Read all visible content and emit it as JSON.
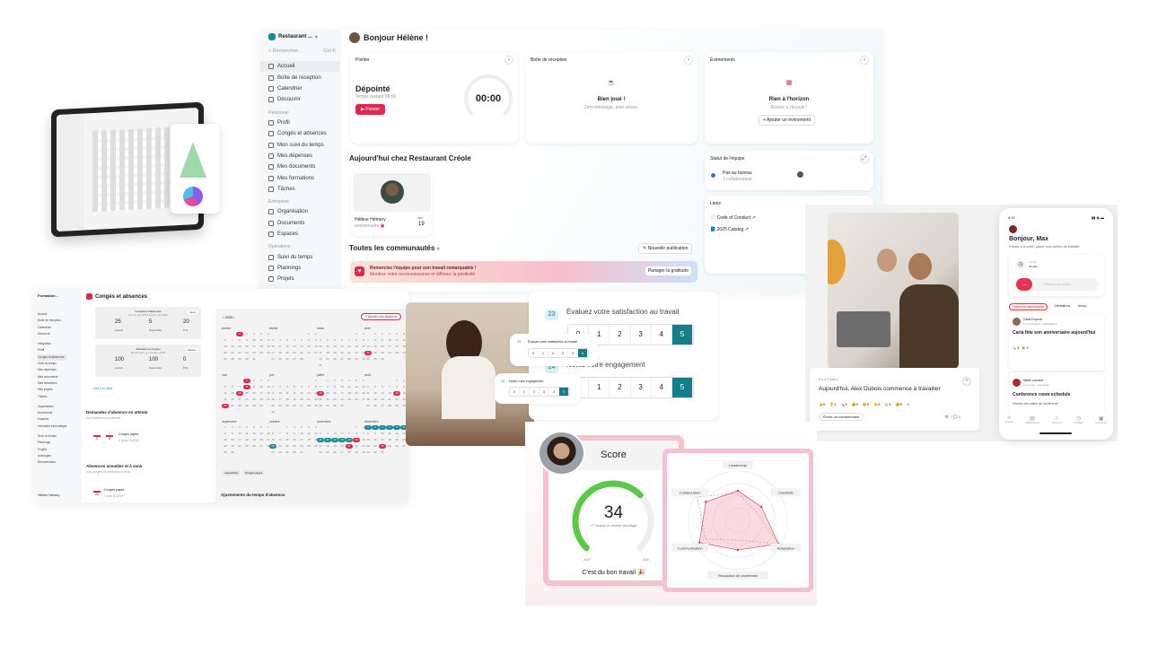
{
  "dashboard": {
    "org": "Restaurant ...",
    "search_placeholder": "Rechercher...",
    "search_shortcut": "Ctrl K",
    "nav_main": [
      "Accueil",
      "Boîte de réception",
      "Calendrier",
      "Découvrir"
    ],
    "section_personnel": "Personnel",
    "nav_personnel": [
      "Profil",
      "Congés et absences",
      "Mon suivi du temps",
      "Mes dépenses",
      "Mes documents",
      "Mes formations",
      "Tâches"
    ],
    "section_entreprise": "Entreprise",
    "nav_entreprise": [
      "Organisation",
      "Documents",
      "Espaces"
    ],
    "section_operations": "Opérations",
    "nav_operations": [
      "Suivi du temps",
      "Plannings",
      "Projets"
    ],
    "greeting": "Bonjour Hélène !",
    "pointer": {
      "title": "Pointer",
      "status": "Dépointé",
      "remaining": "Temps restant 08:00",
      "button": "Pointer",
      "timer": "00:00"
    },
    "inbox": {
      "title": "Boîte de réception",
      "heading": "Bien joué !",
      "sub": "Zéro message, zéro stress."
    },
    "events": {
      "title": "Événements",
      "heading": "Rien à l'horizon",
      "sub": "Restez à l'écoute !",
      "button": "Ajouter un événement"
    },
    "today_title": "Aujourd'hui chez Restaurant Créole",
    "birthday": {
      "name": "Hélène Hémery",
      "label": "anniversaire",
      "month": "mai",
      "day": "19"
    },
    "communities": "Toutes les communautés",
    "new_post": "Nouvelle publication",
    "banner": {
      "title": "Remerciez l'équipe pour son travail remarquable !",
      "sub": "Montrez votre reconnaissance et diffusez la positivité",
      "button": "Partager la gratitude"
    },
    "team": {
      "title": "Statut de l'équipe",
      "status": "Pas au bureau",
      "count": "1 collaborateur"
    },
    "links": {
      "title": "Liens",
      "items": [
        "Code of Conduct",
        "2025 Catalog"
      ]
    }
  },
  "leave": {
    "org": "Formation...",
    "title": "Congés et absences",
    "nav": [
      "Accueil",
      "Boîte de réception",
      "Calendrier",
      "Découvrir",
      "Intégration",
      "Profil",
      "Congés et absences",
      "Suivi du temps",
      "Mes dépenses",
      "Mes documents",
      "Mes formations",
      "Mes projets",
      "Tâches",
      "Organisation",
      "Documents",
      "Espaces",
      "Inventaire informatique",
      "Suivi du temps",
      "Plannings",
      "Projets",
      "Avantages",
      "Rémunération"
    ],
    "user": "Hélène Hémery",
    "counter1": {
      "title": "Compteur d'absences",
      "period": "Du 1er juin 2025 au 31 mai 2026",
      "badge": "Jours",
      "values": [
        "25",
        "5",
        "20"
      ],
      "labels": [
        "Acquis",
        "Disponible",
        "Pris"
      ]
    },
    "counter2": {
      "title": "Allocation en heures",
      "period": "Du 1er janv. au 31 déc. 2025",
      "badge": "Heures",
      "values": [
        "100",
        "100",
        "0"
      ],
      "labels": [
        "Acquis",
        "Disponible",
        "Pris"
      ]
    },
    "see_more": "Voir 3 en plus",
    "pending_title": "Demandes d'absence en attente",
    "pending_sub": "Vos absences en attente",
    "pending_item": {
      "type": "Congés payés",
      "duration": "6 jours (24/25)",
      "from": "1",
      "to": "6"
    },
    "current_title": "Absences actuelles et à venir",
    "current_sub": "Vos congés et absences à venir.",
    "current_item": {
      "type": "Congés payés",
      "duration": "1 jour (24/25)",
      "day": "20"
    },
    "year": "2025",
    "add_button": "Ajouter une absence",
    "months": [
      "janvier",
      "février",
      "mars",
      "avril",
      "mai",
      "juin",
      "juillet",
      "août",
      "septembre",
      "octobre",
      "novembre",
      "décembre"
    ],
    "legend": [
      "Aujourd'hui",
      "Congés payés"
    ],
    "adjust_title": "Ajustements du temps d'absence"
  },
  "survey": {
    "q1": {
      "num": "23",
      "text": "Évaluez votre satisfaction au travail"
    },
    "q2": {
      "num": "24",
      "text": "Notez votre engagement"
    },
    "options": [
      "0",
      "1",
      "2",
      "3",
      "4",
      "5"
    ],
    "selected": 5
  },
  "post": {
    "time": "Il y a 5 jours",
    "title": "Aujourd'hui, Alex Dubois commence à travailler",
    "reactions": [
      "5",
      "2",
      "5",
      "5",
      "5",
      "5",
      "5",
      "5"
    ],
    "comment": "Écrire un commentaire",
    "views": "7",
    "comments": "5"
  },
  "mobile": {
    "time": "9:41",
    "greeting": "Bonjour, Max",
    "sub": "Pointez à la sortie, quand vous arrêtez de travailler",
    "clock_label": "Journée",
    "clock_value": "04:30m",
    "slide": "Glissez pour pointer",
    "tabs": [
      "Toutes les communautés",
      "Célébrations",
      "Annon"
    ],
    "post1": {
      "author": "Carla Dupont",
      "meta": "Il y a 12 heures · Célébrations",
      "title": "Carla fête son anniversaire aujourd'hui",
      "reactions": [
        "5",
        "5"
      ]
    },
    "post2": {
      "author": "Marie Laroche",
      "meta": "Il y a 1 jour · Annonces",
      "title": "Conference room schedule",
      "body": "Horaire des salles de conférence"
    },
    "nav": [
      "Accueil",
      "Collaborateurs",
      "Absences",
      "Pointage",
      "Documents"
    ]
  },
  "score": {
    "title": "Score",
    "value": "34",
    "delta": "+7 depuis le dernier sondage",
    "min": "-100",
    "max": "100",
    "fraction": 0.67,
    "caption": "C'est du bon travail 🎉",
    "radar": {
      "axes": [
        "Leadership",
        "Créativité",
        "Adaptation",
        "Résolution de problèmes",
        "Communication",
        "Collaboration"
      ],
      "values": [
        0.6,
        0.55,
        0.95,
        0.6,
        0.9,
        0.75
      ],
      "previous": [
        0.55,
        0.4,
        0.95,
        0.4,
        0.75,
        0.95
      ]
    }
  },
  "colors": {
    "accent": "#e0284f",
    "teal": "#157f89",
    "green": "#5cc84a",
    "pink": "#f6c7d2"
  }
}
